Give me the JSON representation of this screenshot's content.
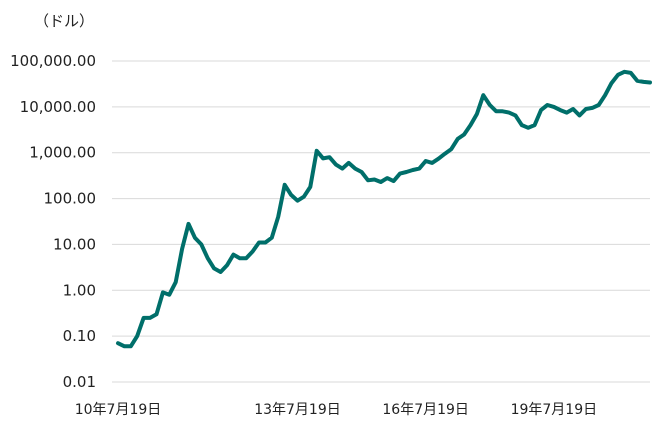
{
  "chart_data": {
    "type": "line",
    "ylabel": "（ドル）",
    "yscale": "log",
    "ylim": [
      0.01,
      100000
    ],
    "y_ticks": [
      {
        "value": 100000,
        "label": "100,000.00"
      },
      {
        "value": 10000,
        "label": "10,000.00"
      },
      {
        "value": 1000,
        "label": "1,000.00"
      },
      {
        "value": 100,
        "label": "100.00"
      },
      {
        "value": 10,
        "label": "10.00"
      },
      {
        "value": 1,
        "label": "1.00"
      },
      {
        "value": 0.1,
        "label": "0.10"
      },
      {
        "value": 0.01,
        "label": "0.01"
      }
    ],
    "x_ticks": [
      "10年7月19日",
      "13年7月19日",
      "16年7月19日",
      "19年7月19日"
    ],
    "grid": true,
    "line_color": "#006f6a",
    "series": [
      {
        "x": [
          "10年7月19日",
          "10年8月",
          "10年9月",
          "10年10月",
          "10年11月",
          "10年12月",
          "11年1月",
          "11年2月",
          "11年3月",
          "11年4月",
          "11年5月",
          "11年6月",
          "11年7月",
          "11年8月",
          "11年9月",
          "11年10月",
          "11年11月",
          "11年12月",
          "12年1月",
          "12年3月",
          "12年5月",
          "12年7月",
          "12年9月",
          "12年11月",
          "13年1月",
          "13年3月",
          "13年4月",
          "13年5月",
          "13年7月19日",
          "13年8月",
          "13年10月",
          "13年11月",
          "13年12月",
          "14年1月",
          "14年3月",
          "14年5月",
          "14年7月",
          "14年9月",
          "14年11月",
          "15年1月",
          "15年3月",
          "15年5月",
          "15年7月",
          "15年9月",
          "15年11月",
          "16年1月",
          "16年3月",
          "16年5月",
          "16年7月19日",
          "16年9月",
          "16年11月",
          "17年1月",
          "17年3月",
          "17年5月",
          "17年7月",
          "17年9月",
          "17年11月",
          "17年12月",
          "18年1月",
          "18年3月",
          "18年5月",
          "18年7月",
          "18年9月",
          "18年11月",
          "19年1月",
          "19年3月",
          "19年5月",
          "19年6月",
          "19年7月19日",
          "19年9月",
          "19年11月",
          "20年1月",
          "20年3月",
          "20年5月",
          "20年7月",
          "20年9月",
          "20年11月",
          "21年1月",
          "21年2月",
          "21年3月",
          "21年4月",
          "21年5月",
          "21年6月",
          "21年7月"
        ],
        "values": [
          0.07,
          0.06,
          0.06,
          0.1,
          0.25,
          0.25,
          0.3,
          0.9,
          0.8,
          1.5,
          8,
          28,
          14,
          10,
          5,
          3,
          2.5,
          3.5,
          6,
          5,
          5,
          7,
          11,
          11,
          14,
          40,
          200,
          120,
          90,
          110,
          180,
          1100,
          750,
          800,
          550,
          450,
          600,
          450,
          380,
          250,
          260,
          230,
          280,
          240,
          350,
          380,
          420,
          450,
          660,
          600,
          740,
          950,
          1200,
          2000,
          2500,
          4000,
          7000,
          18000,
          11000,
          8000,
          8000,
          7500,
          6500,
          4000,
          3500,
          4000,
          8500,
          11000,
          10000,
          8500,
          7500,
          9000,
          6500,
          9000,
          9500,
          11000,
          18000,
          33000,
          50000,
          58000,
          55000,
          37000,
          35000,
          34000
        ]
      }
    ]
  }
}
